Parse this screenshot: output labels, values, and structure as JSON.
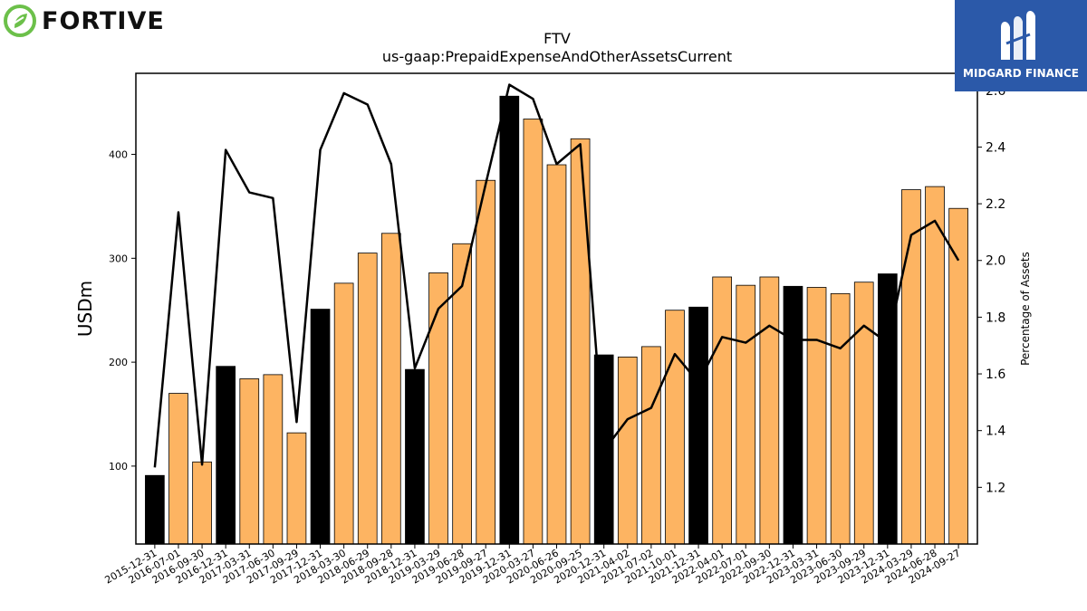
{
  "logos": {
    "left_text": "FORTIVE",
    "left_icon": "fortive-leaf-icon",
    "right_text": "MIDGARD FINANCE",
    "right_icon": "midgard-m-icon",
    "right_bg": "#2b59a9"
  },
  "chart_data": {
    "type": "bar",
    "title": "FTV",
    "subtitle": "us-gaap:PrepaidExpenseAndOtherAssetsCurrent",
    "ylabel": "USDm",
    "y2label": "Percentage of Assets",
    "ylim": [
      25,
      478
    ],
    "y2lim": [
      1.0,
      2.66
    ],
    "yticks": [
      100,
      200,
      300,
      400
    ],
    "y2ticks": [
      1.2,
      1.4,
      1.6,
      1.8,
      2.0,
      2.2,
      2.4,
      2.6
    ],
    "colors": {
      "q4_bar": "#000000",
      "bar": "#fdb462",
      "line": "#000000"
    },
    "categories": [
      "2015-12-31",
      "2016-07-01",
      "2016-09-30",
      "2016-12-31",
      "2017-03-31",
      "2017-06-30",
      "2017-09-29",
      "2017-12-31",
      "2018-03-30",
      "2018-06-29",
      "2018-09-28",
      "2018-12-31",
      "2019-03-29",
      "2019-06-28",
      "2019-09-27",
      "2019-12-31",
      "2020-03-27",
      "2020-06-26",
      "2020-09-25",
      "2020-12-31",
      "2021-04-02",
      "2021-07-02",
      "2021-10-01",
      "2021-12-31",
      "2022-04-01",
      "2022-07-01",
      "2022-09-30",
      "2022-12-31",
      "2023-03-31",
      "2023-06-30",
      "2023-09-29",
      "2023-12-31",
      "2024-03-29",
      "2024-06-28",
      "2024-09-27"
    ],
    "series": [
      {
        "axis": "left",
        "values": [
          91,
          170,
          104,
          196,
          184,
          188,
          132,
          251,
          276,
          305,
          324,
          193,
          286,
          314,
          375,
          456,
          434,
          390,
          415,
          207,
          205,
          215,
          250,
          253,
          282,
          274,
          282,
          273,
          272,
          266,
          277,
          285,
          366,
          369,
          348
        ],
        "q4": [
          true,
          false,
          false,
          true,
          false,
          false,
          false,
          true,
          false,
          false,
          false,
          true,
          false,
          false,
          false,
          true,
          false,
          false,
          false,
          true,
          false,
          false,
          false,
          true,
          false,
          false,
          false,
          true,
          false,
          false,
          false,
          true,
          false,
          false,
          false
        ]
      },
      {
        "axis": "right",
        "type": "line",
        "values": [
          1.27,
          2.17,
          1.28,
          2.39,
          2.24,
          2.22,
          1.43,
          2.39,
          2.59,
          2.55,
          2.34,
          1.62,
          1.83,
          1.91,
          2.27,
          2.62,
          2.57,
          2.34,
          2.41,
          1.33,
          1.44,
          1.48,
          1.67,
          1.57,
          1.73,
          1.71,
          1.77,
          1.72,
          1.72,
          1.69,
          1.77,
          1.71,
          2.09,
          2.14,
          2.0
        ]
      }
    ]
  }
}
